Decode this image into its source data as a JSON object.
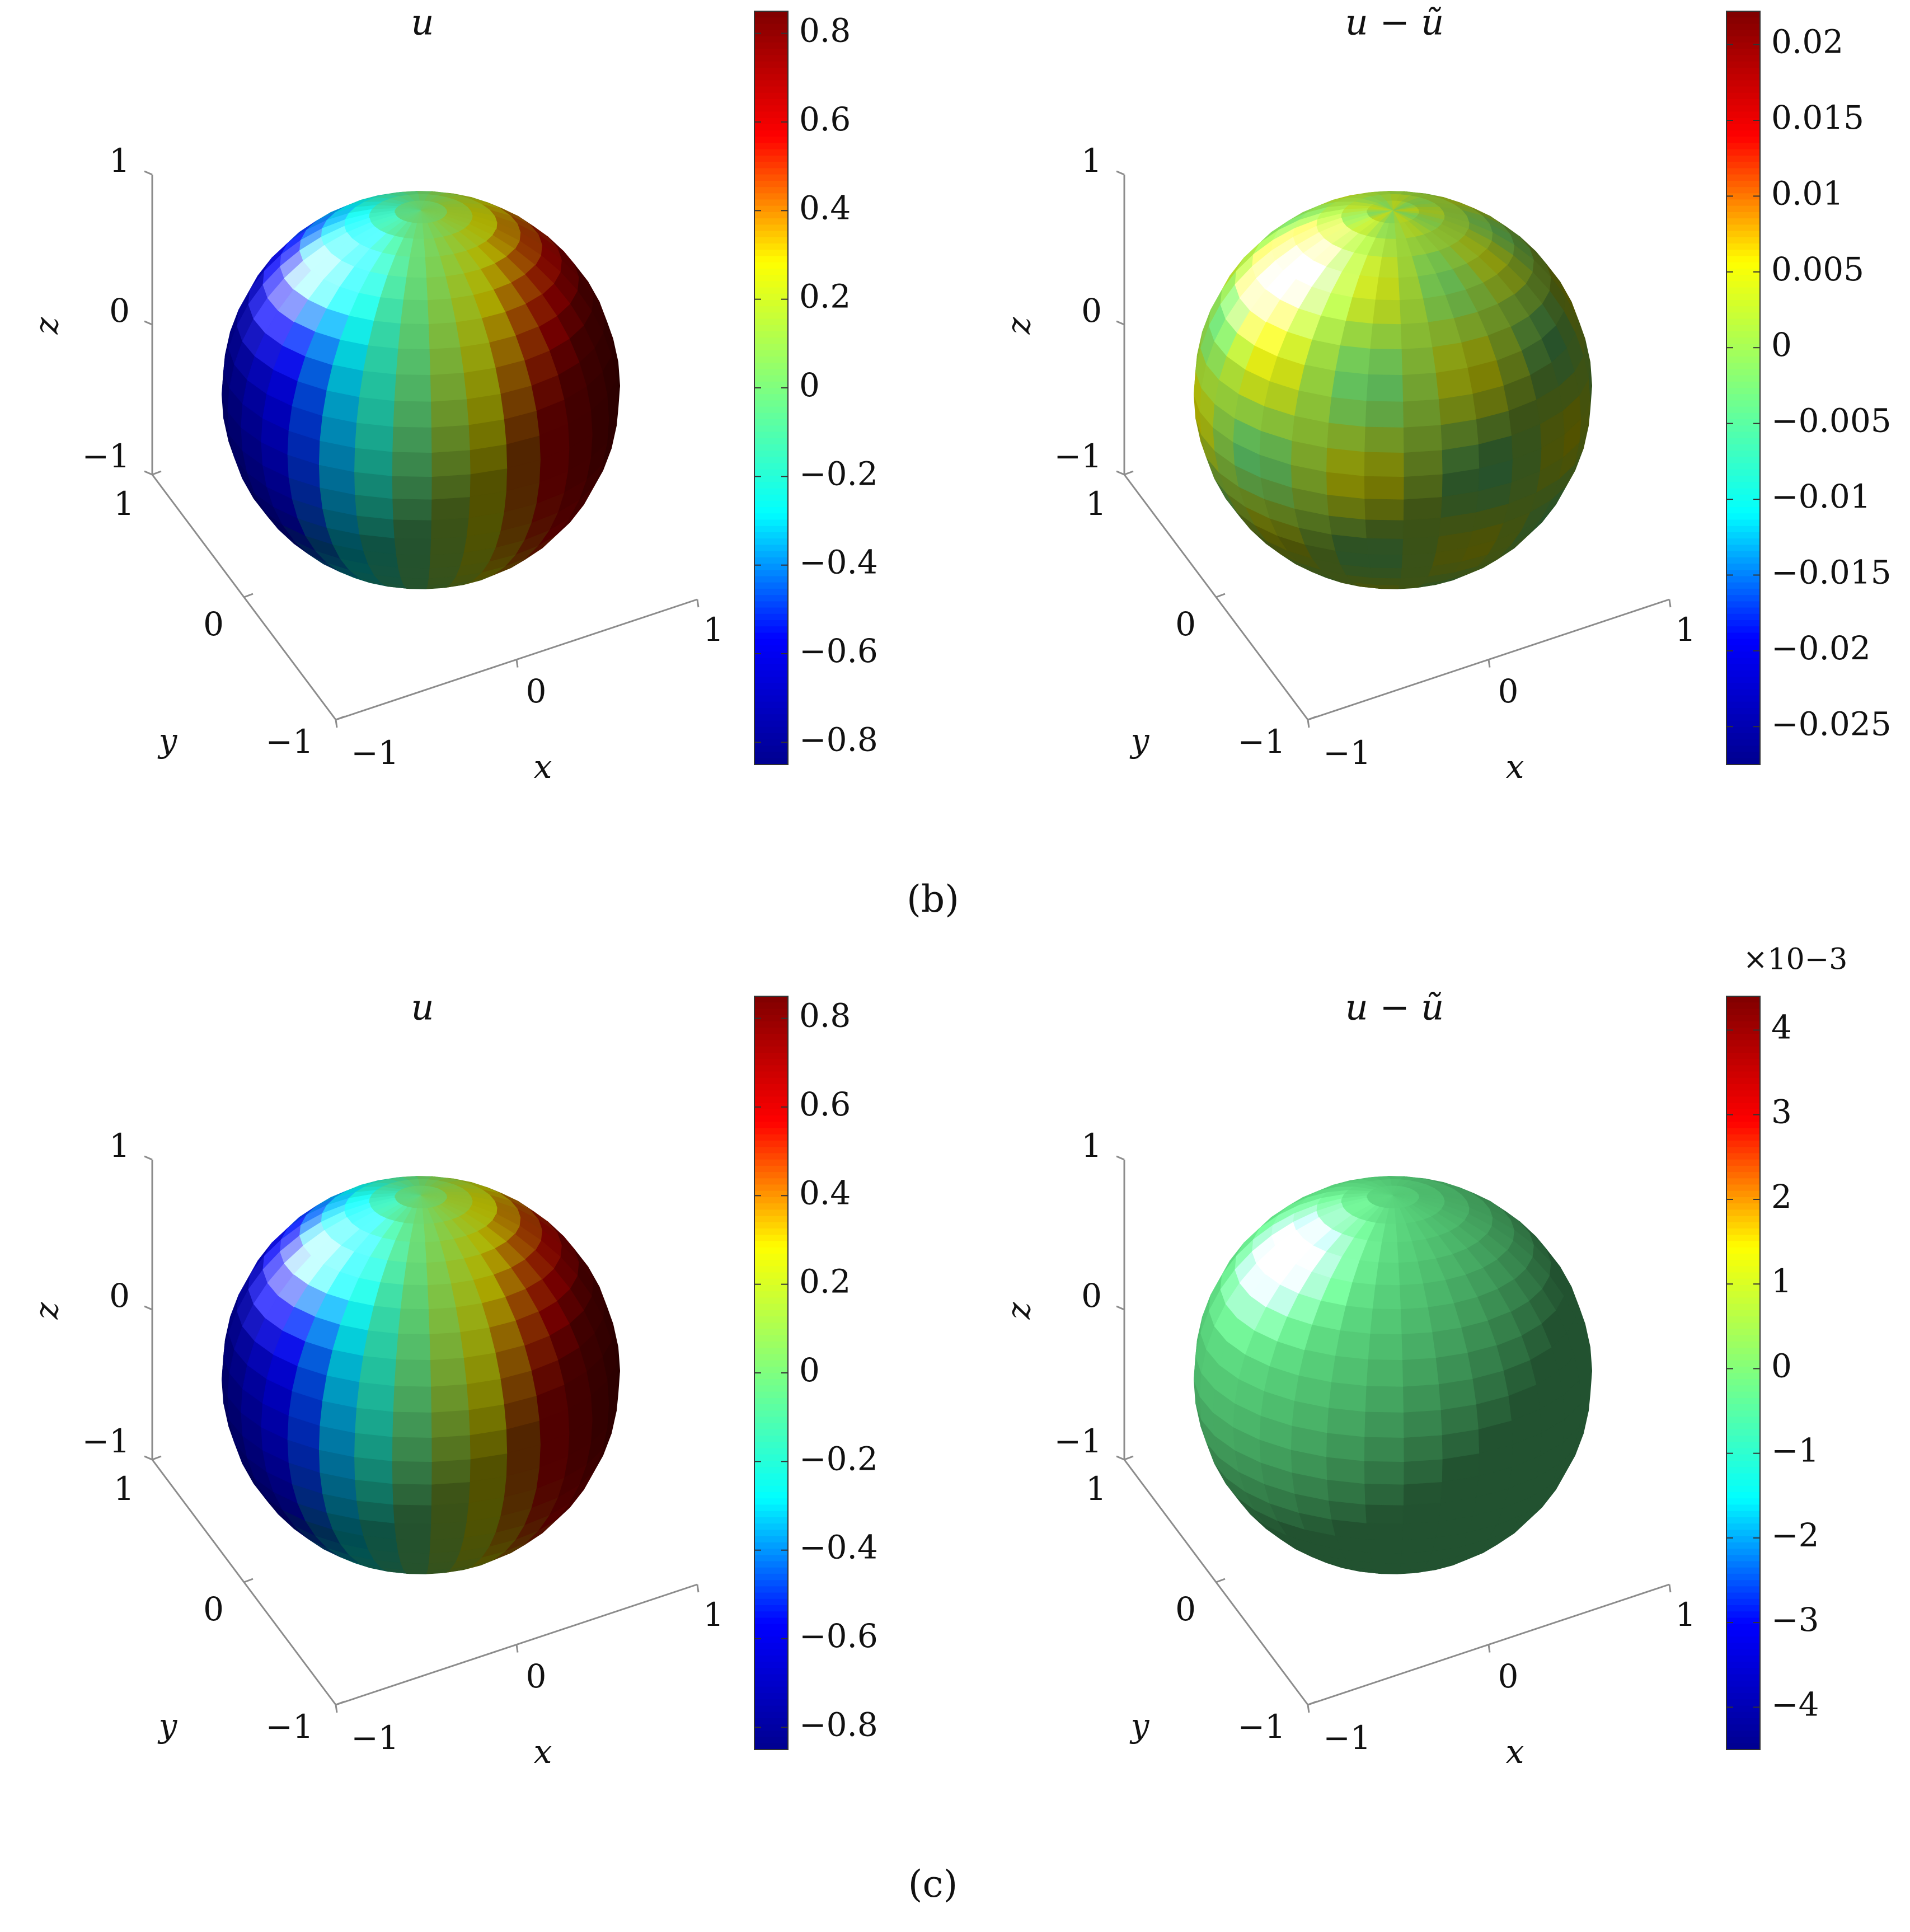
{
  "colormap": [
    "#00008f",
    "#0000ff",
    "#00ffff",
    "#7fff7f",
    "#ffff00",
    "#ff0000",
    "#7f0000"
  ],
  "shading": {
    "highlight": "#ffffff",
    "shadow": "#000000"
  },
  "axis_color": "#8c8c8c",
  "panels": [
    {
      "title": "u",
      "chart_data": {
        "type": "surface",
        "surface": "unit sphere",
        "title": "u",
        "xlabel": "x",
        "ylabel": "y",
        "zlabel": "z",
        "x_ticks": [
          "−1",
          "0",
          "1"
        ],
        "y_ticks": [
          "−1",
          "0",
          "1"
        ],
        "z_ticks": [
          "−1",
          "0",
          "1"
        ],
        "xlim": [
          -1,
          1
        ],
        "ylim": [
          -1,
          1
        ],
        "zlim": [
          -1,
          1
        ],
        "colorbar": {
          "range": [
            -0.85,
            0.85
          ],
          "ticks": [
            {
              "value": 0.8,
              "label": "0.8"
            },
            {
              "value": 0.6,
              "label": "0.6"
            },
            {
              "value": 0.4,
              "label": "0.4"
            },
            {
              "value": 0.2,
              "label": "0.2"
            },
            {
              "value": 0,
              "label": "0"
            },
            {
              "value": -0.2,
              "label": "−0.2"
            },
            {
              "value": -0.4,
              "label": "−0.4"
            },
            {
              "value": -0.6,
              "label": "−0.6"
            },
            {
              "value": -0.8,
              "label": "−0.8"
            }
          ],
          "exponent": ""
        },
        "field": {
          "type": "linear",
          "gx": 0.85,
          "gy": 0,
          "gz": 0,
          "noise": 0
        }
      }
    },
    {
      "title": "u − ũ",
      "chart_data": {
        "type": "surface",
        "surface": "unit sphere",
        "title": "u − ũ",
        "xlabel": "x",
        "ylabel": "y",
        "zlabel": "z",
        "x_ticks": [
          "−1",
          "0",
          "1"
        ],
        "y_ticks": [
          "−1",
          "0",
          "1"
        ],
        "z_ticks": [
          "−1",
          "0",
          "1"
        ],
        "xlim": [
          -1,
          1
        ],
        "ylim": [
          -1,
          1
        ],
        "zlim": [
          -1,
          1
        ],
        "colorbar": {
          "range": [
            -0.0275,
            0.0222
          ],
          "ticks": [
            {
              "value": 0.02,
              "label": "0.02"
            },
            {
              "value": 0.015,
              "label": "0.015"
            },
            {
              "value": 0.01,
              "label": "0.01"
            },
            {
              "value": 0.005,
              "label": "0.005"
            },
            {
              "value": 0,
              "label": "0"
            },
            {
              "value": -0.005,
              "label": "−0.005"
            },
            {
              "value": -0.01,
              "label": "−0.01"
            },
            {
              "value": -0.015,
              "label": "−0.015"
            },
            {
              "value": -0.02,
              "label": "−0.02"
            },
            {
              "value": -0.025,
              "label": "−0.025"
            }
          ],
          "exponent": ""
        },
        "field": {
          "type": "oscillatory",
          "base": 0.0012,
          "amp": 0.0045
        }
      }
    },
    {
      "title": "u",
      "chart_data": {
        "type": "surface",
        "surface": "unit sphere",
        "title": "u",
        "xlabel": "x",
        "ylabel": "y",
        "zlabel": "z",
        "x_ticks": [
          "−1",
          "0",
          "1"
        ],
        "y_ticks": [
          "−1",
          "0",
          "1"
        ],
        "z_ticks": [
          "−1",
          "0",
          "1"
        ],
        "xlim": [
          -1,
          1
        ],
        "ylim": [
          -1,
          1
        ],
        "zlim": [
          -1,
          1
        ],
        "colorbar": {
          "range": [
            -0.85,
            0.85
          ],
          "ticks": [
            {
              "value": 0.8,
              "label": "0.8"
            },
            {
              "value": 0.6,
              "label": "0.6"
            },
            {
              "value": 0.4,
              "label": "0.4"
            },
            {
              "value": 0.2,
              "label": "0.2"
            },
            {
              "value": 0,
              "label": "0"
            },
            {
              "value": -0.2,
              "label": "−0.2"
            },
            {
              "value": -0.4,
              "label": "−0.4"
            },
            {
              "value": -0.6,
              "label": "−0.6"
            },
            {
              "value": -0.8,
              "label": "−0.8"
            }
          ],
          "exponent": ""
        },
        "field": {
          "type": "linear",
          "gx": 0.85,
          "gy": 0,
          "gz": 0,
          "noise": 0
        }
      }
    },
    {
      "title": "u − ũ",
      "chart_data": {
        "type": "surface",
        "surface": "unit sphere",
        "title": "u − ũ",
        "xlabel": "x",
        "ylabel": "y",
        "zlabel": "z",
        "x_ticks": [
          "−1",
          "0",
          "1"
        ],
        "y_ticks": [
          "−1",
          "0",
          "1"
        ],
        "z_ticks": [
          "−1",
          "0",
          "1"
        ],
        "xlim": [
          -1,
          1
        ],
        "ylim": [
          -1,
          1
        ],
        "zlim": [
          -1,
          1
        ],
        "colorbar": {
          "range": [
            -4.5,
            4.4
          ],
          "ticks": [
            {
              "value": 4,
              "label": "4"
            },
            {
              "value": 3,
              "label": "3"
            },
            {
              "value": 2,
              "label": "2"
            },
            {
              "value": 1,
              "label": "1"
            },
            {
              "value": 0,
              "label": "0"
            },
            {
              "value": -1,
              "label": "−1"
            },
            {
              "value": -2,
              "label": "−2"
            },
            {
              "value": -3,
              "label": "−3"
            },
            {
              "value": -4,
              "label": "−4"
            }
          ],
          "exponent": "×10−3"
        },
        "field": {
          "type": "constant",
          "value": -0.3
        }
      }
    }
  ],
  "captions": {
    "b": "(b)",
    "c": "(c)"
  }
}
